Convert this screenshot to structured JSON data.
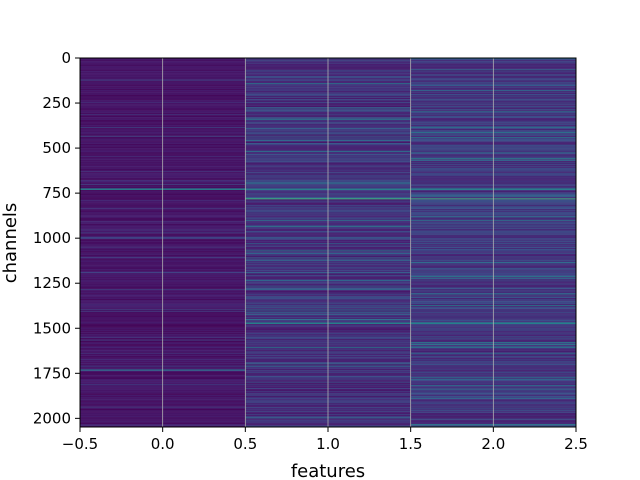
{
  "chart_data": {
    "type": "heatmap",
    "title": "",
    "xlabel": "features",
    "ylabel": "channels",
    "xlim": [
      -0.5,
      2.5
    ],
    "ylim": [
      2048,
      0
    ],
    "x_ticks": [
      -0.5,
      0.0,
      0.5,
      1.0,
      1.5,
      2.0,
      2.5
    ],
    "x_tick_labels": [
      "−0.5",
      "0.0",
      "0.5",
      "1.0",
      "1.5",
      "2.0",
      "2.5"
    ],
    "y_ticks": [
      0,
      250,
      500,
      750,
      1000,
      1250,
      1500,
      1750,
      2000
    ],
    "y_tick_labels": [
      "0",
      "250",
      "500",
      "750",
      "1000",
      "1250",
      "1500",
      "1750",
      "2000"
    ],
    "grid": true,
    "colormap": "viridis",
    "n_columns": 3,
    "n_rows": 2048,
    "columns": [
      {
        "feature": 0,
        "mean_level": 0.07,
        "spread": 0.1
      },
      {
        "feature": 1,
        "mean_level": 0.16,
        "spread": 0.16
      },
      {
        "feature": 2,
        "mean_level": 0.18,
        "spread": 0.16
      }
    ],
    "bright_rows": [
      {
        "channel": 725,
        "features": [
          0,
          1,
          2
        ],
        "level": 0.45
      },
      {
        "channel": 780,
        "features": [
          1,
          2
        ],
        "level": 0.7
      },
      {
        "channel": 900,
        "features": [
          1,
          2
        ],
        "level": 0.4
      },
      {
        "channel": 1470,
        "features": [
          1,
          2
        ],
        "level": 0.45
      },
      {
        "channel": 1730,
        "features": [
          0
        ],
        "level": 0.35
      }
    ]
  }
}
